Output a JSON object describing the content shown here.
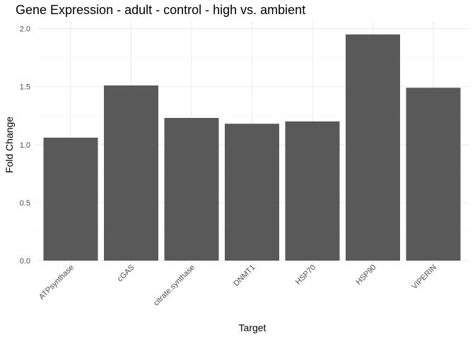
{
  "chart_data": {
    "type": "bar",
    "title": "Gene Expression - adult - control - high vs. ambient",
    "xlabel": "Target",
    "ylabel": "Fold Change",
    "categories": [
      "ATPsynthase",
      "cGAS",
      "citrate.synthase",
      "DNMT1",
      "HSP70",
      "HSP90",
      "VIPERIN"
    ],
    "values": [
      1.06,
      1.51,
      1.23,
      1.18,
      1.2,
      1.95,
      1.49
    ],
    "ylim": [
      0,
      2.0
    ],
    "yticks": [
      0.0,
      0.5,
      1.0,
      1.5,
      2.0
    ],
    "ytick_labels": [
      "0.0",
      "0.5",
      "1.0",
      "1.5",
      "2.0"
    ],
    "bar_color": "#595959",
    "grid": true,
    "legend": "none",
    "theme": "minimal"
  }
}
